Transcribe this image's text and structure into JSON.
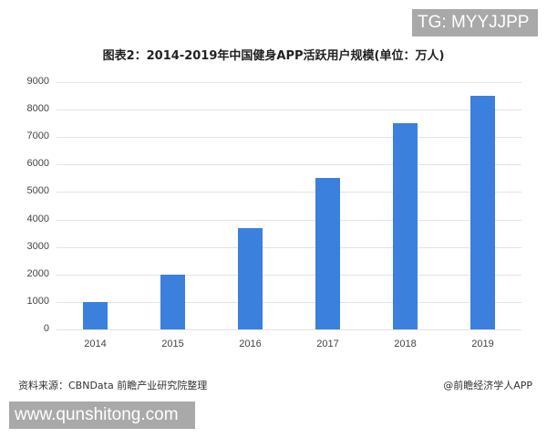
{
  "watermarks": {
    "top_right": "TG: MYYJJPP",
    "bottom_left": "www.qunshitong.com"
  },
  "footer": {
    "source": "资料来源：CBNData 前瞻产业研究院整理",
    "credit": "@前瞻经济学人APP"
  },
  "colors": {
    "bar": "#3b80dc",
    "grid": "#e3e3e3"
  },
  "chart_data": {
    "type": "bar",
    "title": "图表2：2014-2019年中国健身APP活跃用户规模(单位：万人)",
    "xlabel": "",
    "ylabel": "",
    "categories": [
      "2014",
      "2015",
      "2016",
      "2017",
      "2018",
      "2019"
    ],
    "values": [
      1000,
      2000,
      3700,
      5500,
      7500,
      8500
    ],
    "ylim": [
      0,
      9000
    ],
    "yticks": [
      "9000",
      "8000",
      "7000",
      "6000",
      "5000",
      "4000",
      "3000",
      "2000",
      "1000",
      "0"
    ],
    "grid": true,
    "legend": null
  }
}
